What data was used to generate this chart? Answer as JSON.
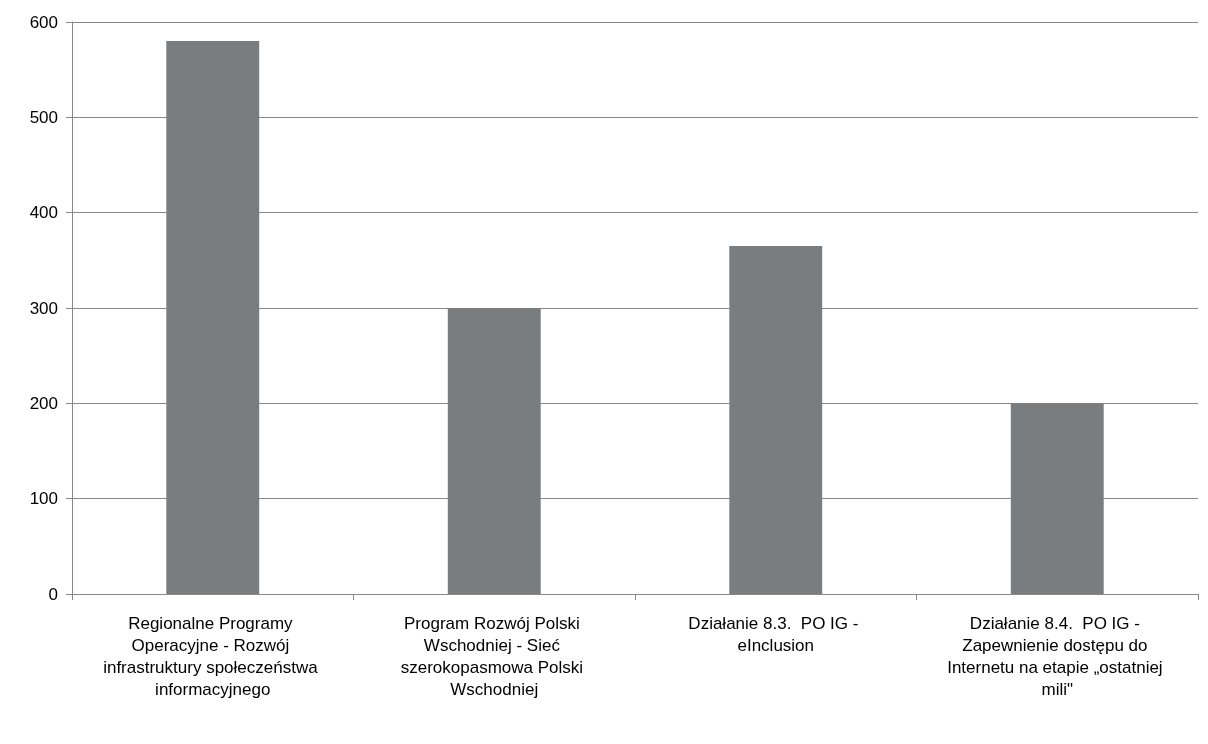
{
  "chart_data": {
    "type": "bar",
    "categories": [
      "Regionalne Programy Operacyjne - Rozwój infrastruktury społeczeństwa informacyjnego",
      "Program Rozwój Polski Wschodniej - Sieć szerokopasmowa Polski Wschodniej",
      "Działanie 8.3.  PO IG - eInclusion",
      "Działanie 8.4.  PO IG - Zapewnienie dostępu do Internetu na etapie „ostatniej mili\""
    ],
    "values": [
      580,
      300,
      365,
      200
    ],
    "color": "#7a7d80",
    "ylim": [
      0,
      600
    ],
    "yticks": [
      0,
      100,
      200,
      300,
      400,
      500,
      600
    ],
    "grid": "y"
  }
}
